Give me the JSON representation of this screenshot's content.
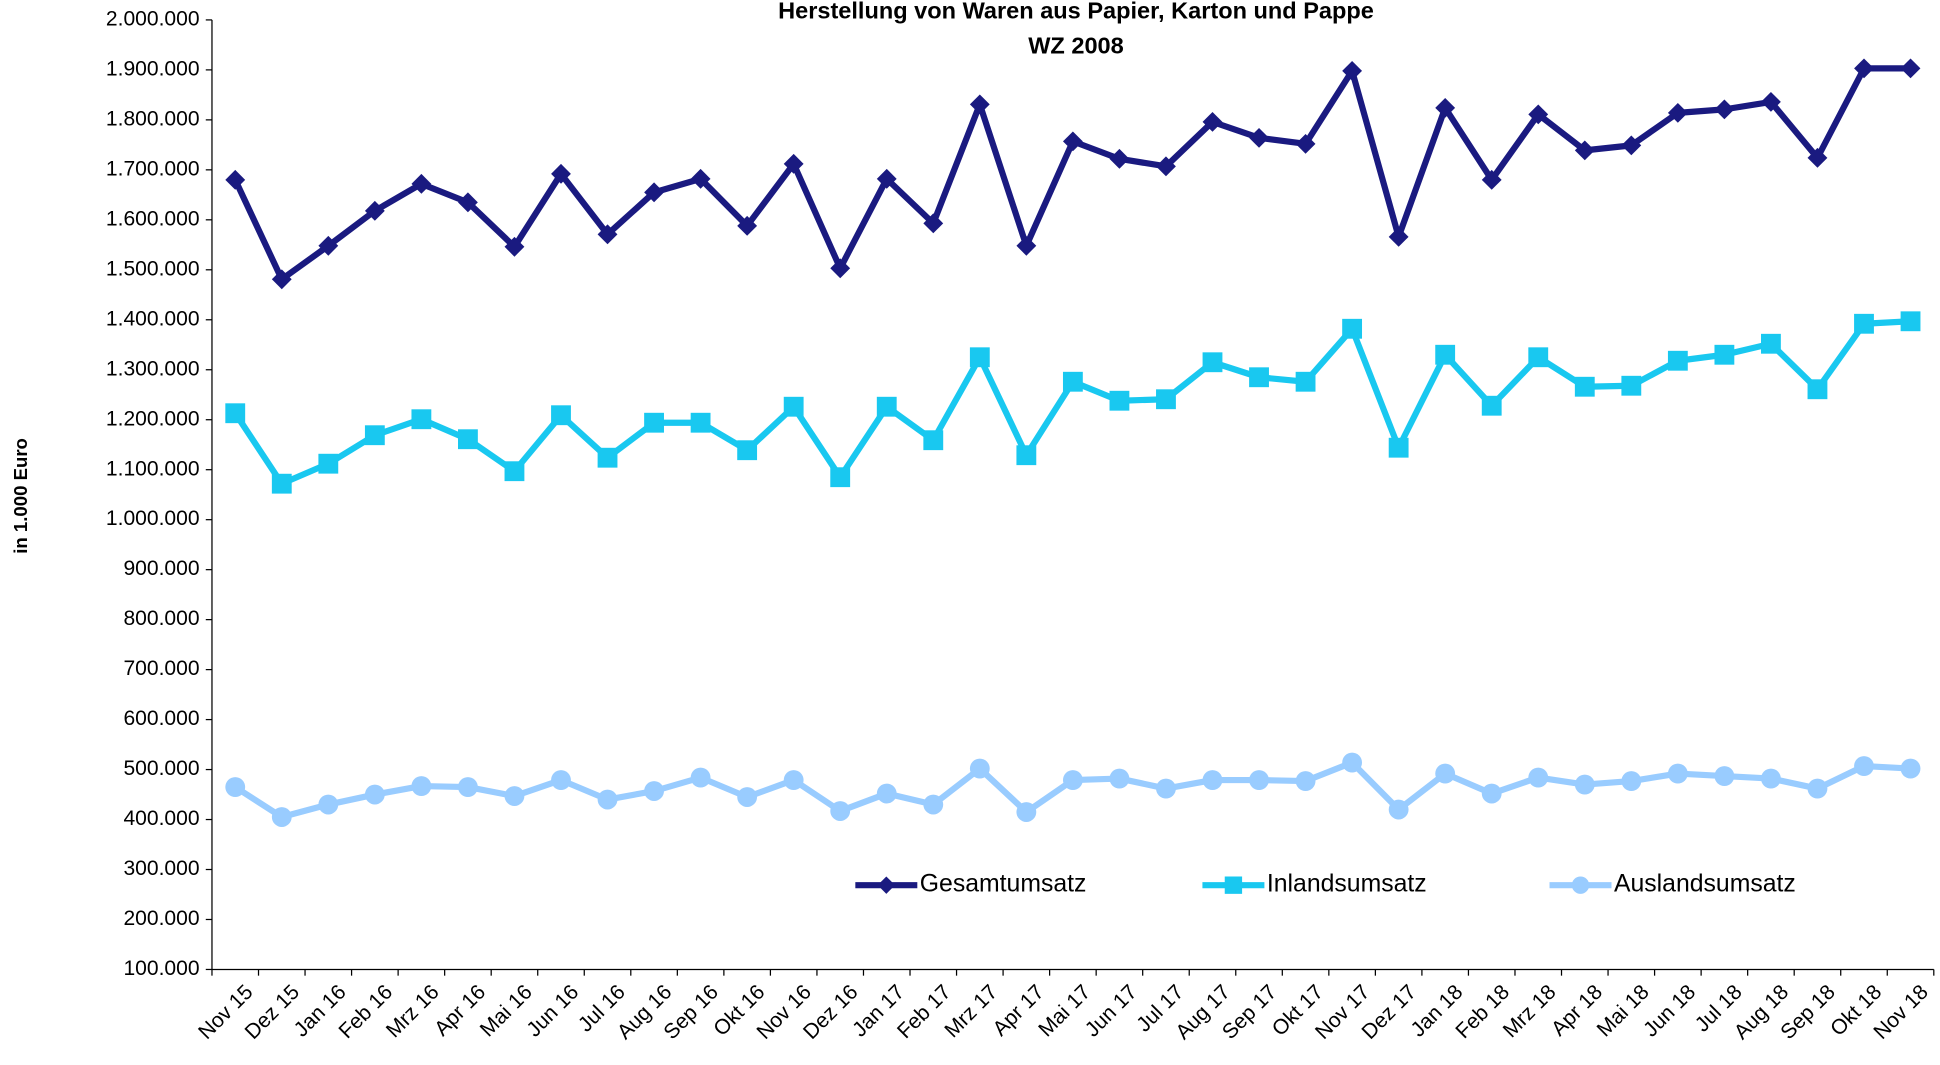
{
  "chart_data": {
    "type": "line",
    "title": "Herstellung von Waren aus Papier, Karton und Pappe",
    "subtitle": "WZ 2008",
    "y_label": "in 1.000 Euro",
    "categories": [
      "Nov 15",
      "Dez 15",
      "Jan 16",
      "Feb 16",
      "Mrz 16",
      "Apr 16",
      "Mai 16",
      "Jun 16",
      "Jul 16",
      "Aug 16",
      "Sep 16",
      "Okt 16",
      "Nov 16",
      "Dez 16",
      "Jan 17",
      "Feb 17",
      "Mrz 17",
      "Apr 17",
      "Mai 17",
      "Jun 17",
      "Jul 17",
      "Aug 17",
      "Sep 17",
      "Okt 17",
      "Nov 17",
      "Dez 17",
      "Jan 18",
      "Feb 18",
      "Mrz 18",
      "Apr 18",
      "Mai 18",
      "Jun 18",
      "Jul 18",
      "Aug 18",
      "Sep 18",
      "Okt 18",
      "Nov 18"
    ],
    "series": [
      {
        "name": "Gesamtumsatz",
        "color": "#1a1a80",
        "marker": "diamond",
        "values": [
          1680000,
          1481000,
          1548000,
          1618000,
          1672000,
          1635000,
          1546000,
          1692000,
          1571000,
          1655000,
          1682000,
          1588000,
          1712000,
          1503000,
          1682000,
          1593000,
          1831000,
          1548000,
          1757000,
          1722000,
          1707000,
          1796000,
          1764000,
          1752000,
          1898000,
          1566000,
          1824000,
          1680000,
          1811000,
          1739000,
          1749000,
          1814000,
          1821000,
          1836000,
          1724000,
          1903000,
          1903000
        ]
      },
      {
        "name": "Inlandsumsatz",
        "color": "#19c8f0",
        "marker": "square",
        "values": [
          1213000,
          1072000,
          1112000,
          1169000,
          1201000,
          1161000,
          1097000,
          1209000,
          1124000,
          1194000,
          1194000,
          1139000,
          1226000,
          1085000,
          1226000,
          1159000,
          1325000,
          1129000,
          1276000,
          1238000,
          1241000,
          1315000,
          1285000,
          1276000,
          1382000,
          1144000,
          1330000,
          1228000,
          1325000,
          1266000,
          1268000,
          1318000,
          1330000,
          1352000,
          1261000,
          1392000,
          1397000
        ]
      },
      {
        "name": "Auslandsumsatz",
        "color": "#99ccff",
        "marker": "circle",
        "values": [
          465000,
          405000,
          430000,
          450000,
          467000,
          465000,
          447000,
          479000,
          440000,
          457000,
          484000,
          445000,
          479000,
          417000,
          452000,
          430000,
          502000,
          415000,
          479000,
          482000,
          462000,
          479000,
          479000,
          477000,
          514000,
          420000,
          492000,
          452000,
          484000,
          470000,
          477000,
          492000,
          487000,
          482000,
          462000,
          507000,
          502000
        ]
      }
    ],
    "ylim": [
      100000,
      2000000
    ],
    "yticks": [
      {
        "value": 100000,
        "label": "100.000"
      },
      {
        "value": 200000,
        "label": "200.000"
      },
      {
        "value": 300000,
        "label": "300.000"
      },
      {
        "value": 400000,
        "label": "400.000"
      },
      {
        "value": 500000,
        "label": "500.000"
      },
      {
        "value": 600000,
        "label": "600.000"
      },
      {
        "value": 700000,
        "label": "700.000"
      },
      {
        "value": 800000,
        "label": "800.000"
      },
      {
        "value": 900000,
        "label": "900.000"
      },
      {
        "value": 1000000,
        "label": "1.000.000"
      },
      {
        "value": 1100000,
        "label": "1.100.000"
      },
      {
        "value": 1200000,
        "label": "1.200.000"
      },
      {
        "value": 1300000,
        "label": "1.300.000"
      },
      {
        "value": 1400000,
        "label": "1.400.000"
      },
      {
        "value": 1500000,
        "label": "1.500.000"
      },
      {
        "value": 1600000,
        "label": "1.600.000"
      },
      {
        "value": 1700000,
        "label": "1.700.000"
      },
      {
        "value": 1800000,
        "label": "1.800.000"
      },
      {
        "value": 1900000,
        "label": "1.900.000"
      },
      {
        "value": 2000000,
        "label": "2.000.000"
      }
    ],
    "grid": false,
    "legend": "lower right"
  }
}
